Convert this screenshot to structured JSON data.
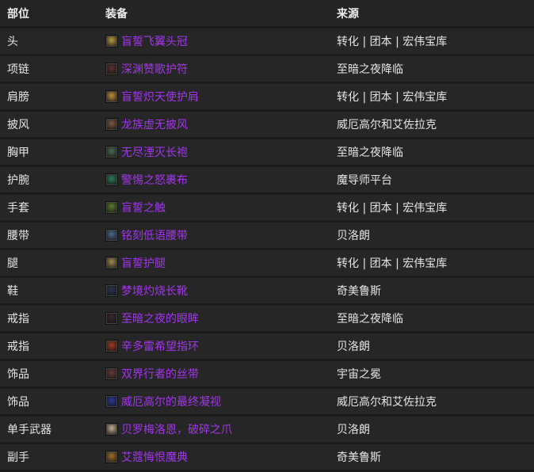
{
  "headers": {
    "slot": "部位",
    "item": "装备",
    "source": "来源"
  },
  "colors": {
    "epic": "#a335ee"
  },
  "rows": [
    {
      "slot": "头",
      "item": "盲誓飞翼头冠",
      "source": "转化 | 团本 | 宏伟宝库",
      "icon": "helm-icon",
      "icon_color": "#b89a3c"
    },
    {
      "slot": "项链",
      "item": "深渊赞歌护符",
      "source": "至暗之夜降临",
      "icon": "necklace-icon",
      "icon_color": "#5a3030"
    },
    {
      "slot": "肩膀",
      "item": "盲誓炽天使护肩",
      "source": "转化 | 团本 | 宏伟宝库",
      "icon": "shoulder-icon",
      "icon_color": "#c08a3a"
    },
    {
      "slot": "披风",
      "item": "龙族虚无披风",
      "source": "威厄高尔和艾佐拉克",
      "icon": "cloak-icon",
      "icon_color": "#7a5a40"
    },
    {
      "slot": "胸甲",
      "item": "无尽湮灭长袍",
      "source": "至暗之夜降临",
      "icon": "chest-icon",
      "icon_color": "#4a6a50"
    },
    {
      "slot": "护腕",
      "item": "警惕之怒裹布",
      "source": "魔导师平台",
      "icon": "bracer-icon",
      "icon_color": "#2f7a5a"
    },
    {
      "slot": "手套",
      "item": "盲誓之触",
      "source": "转化 | 团本 | 宏伟宝库",
      "icon": "gloves-icon",
      "icon_color": "#5a7a30"
    },
    {
      "slot": "腰带",
      "item": "铭刻低语腰带",
      "source": "贝洛朗",
      "icon": "belt-icon",
      "icon_color": "#4a6a8a"
    },
    {
      "slot": "腿",
      "item": "盲誓护腿",
      "source": "转化 | 团本 | 宏伟宝库",
      "icon": "legs-icon",
      "icon_color": "#a08a50"
    },
    {
      "slot": "鞋",
      "item": "梦境灼烧长靴",
      "source": "奇美鲁斯",
      "icon": "boots-icon",
      "icon_color": "#2a3550"
    },
    {
      "slot": "戒指",
      "item": "至暗之夜的眼眸",
      "source": "至暗之夜降临",
      "icon": "ring-icon",
      "icon_color": "#3a2a2a"
    },
    {
      "slot": "戒指",
      "item": "辛多雷希望指环",
      "source": "贝洛朗",
      "icon": "ring-icon",
      "icon_color": "#a03a20"
    },
    {
      "slot": "饰品",
      "item": "双界行者的丝带",
      "source": "宇宙之冕",
      "icon": "trinket-icon",
      "icon_color": "#6a3a3a"
    },
    {
      "slot": "饰品",
      "item": "威厄高尔的最终凝视",
      "source": "威厄高尔和艾佐拉克",
      "icon": "trinket-icon",
      "icon_color": "#2a3a9a"
    },
    {
      "slot": "单手武器",
      "item": "贝罗梅洛恩，破碎之爪",
      "source": "贝洛朗",
      "icon": "weapon-icon",
      "icon_color": "#c0b090"
    },
    {
      "slot": "副手",
      "item": "艾蔻悔恨魔典",
      "source": "奇美鲁斯",
      "icon": "offhand-icon",
      "icon_color": "#a0702a"
    }
  ]
}
